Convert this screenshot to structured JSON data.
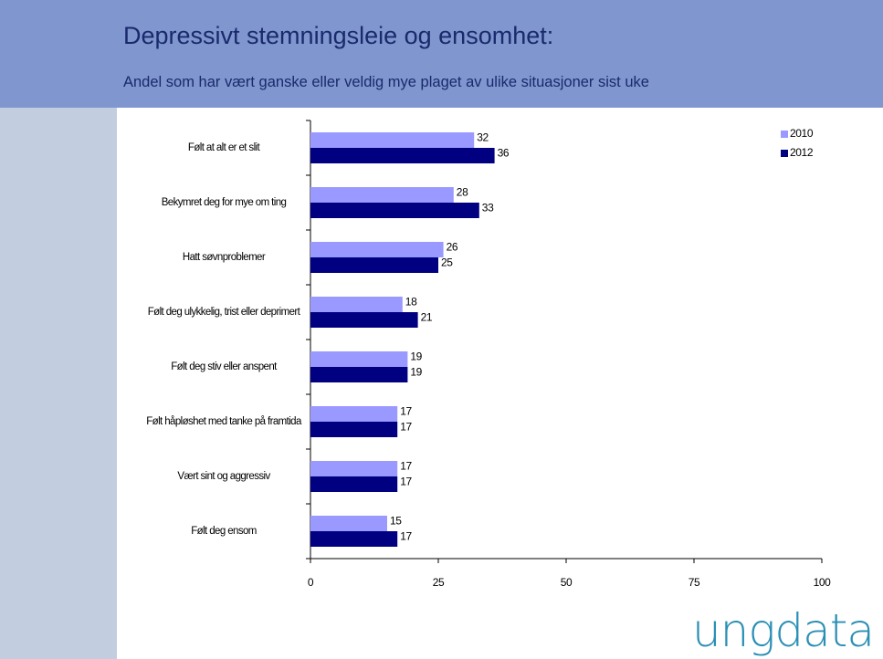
{
  "chart_data": {
    "type": "barh",
    "title": "Depressivt stemningsleie og ensomhet:",
    "subtitle": "Andel som har vært ganske eller veldig mye plaget av ulike situasjoner sist uke",
    "categories": [
      "Følt at alt er et slit",
      "Bekymret deg for mye om ting",
      "Hatt søvnproblemer",
      "Følt deg ulykkelig, trist eller deprimert",
      "Følt deg stiv eller anspent",
      "Følt håpløshet med tanke på framtida",
      "Vært sint og aggressiv",
      "Følt deg ensom"
    ],
    "series": [
      {
        "name": "2010",
        "color": "#9999ff",
        "values": [
          32,
          28,
          26,
          18,
          19,
          17,
          17,
          15
        ]
      },
      {
        "name": "2012",
        "color": "#000080",
        "values": [
          36,
          33,
          25,
          21,
          19,
          17,
          17,
          17
        ]
      }
    ],
    "xlim": [
      0,
      100
    ],
    "xticks": [
      0,
      25,
      50,
      75,
      100
    ],
    "legend": "top-right",
    "logo": "ungdata"
  }
}
